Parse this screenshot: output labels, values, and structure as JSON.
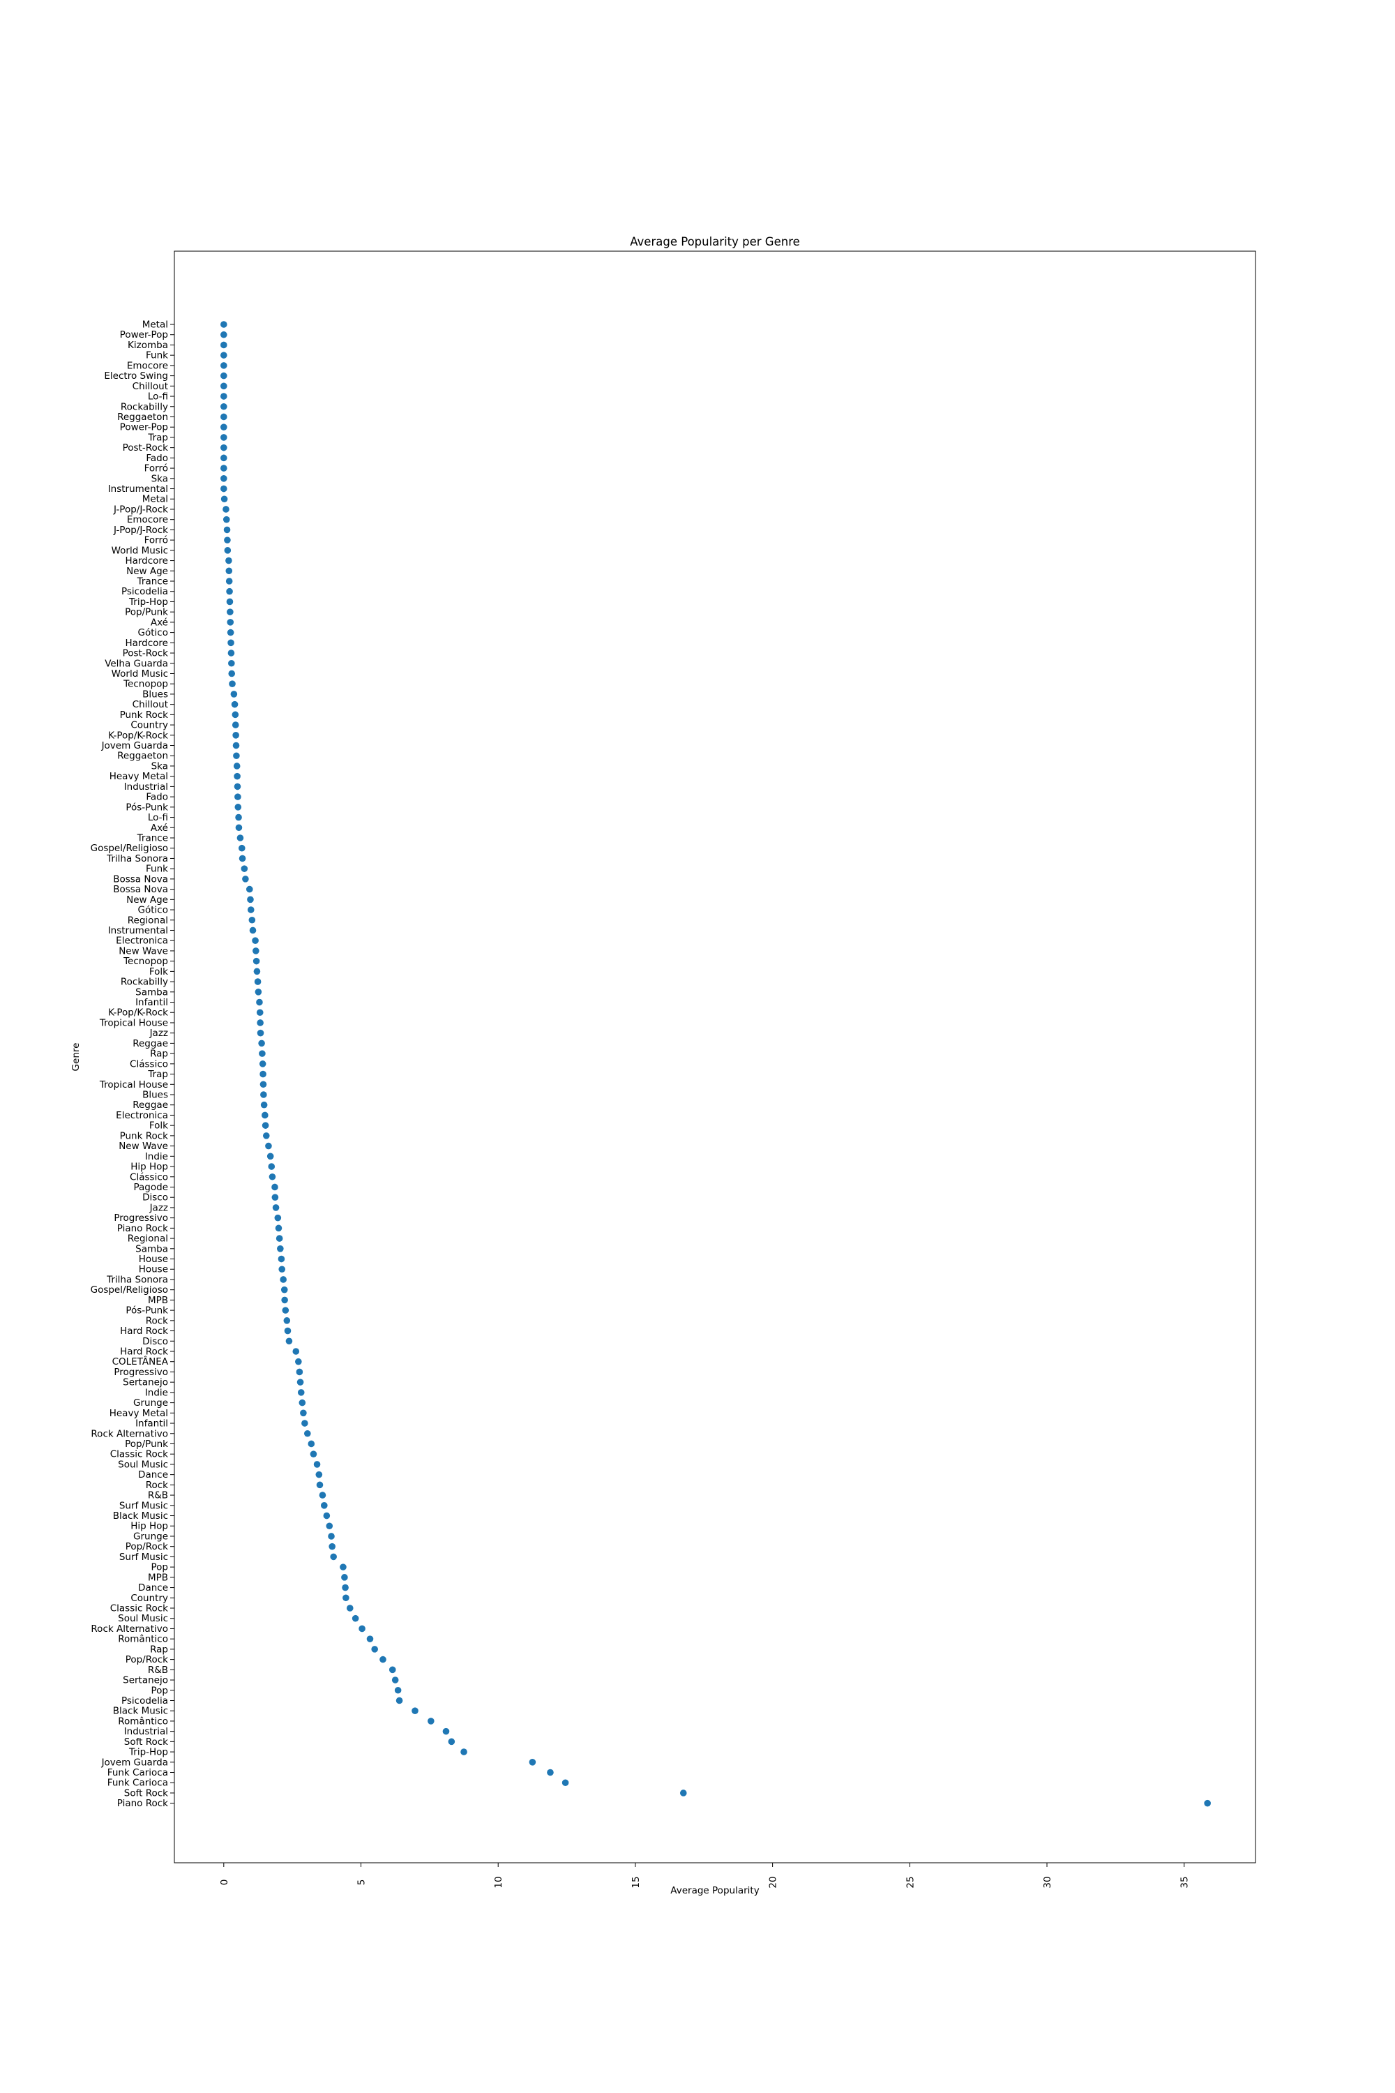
{
  "chart_data": {
    "type": "scatter",
    "title": "Average Popularity per Genre",
    "xlabel": "Average Popularity",
    "ylabel": "Genre",
    "xlim": [
      -1.8,
      37.6
    ],
    "xticks": [
      0,
      5,
      10,
      15,
      20,
      25,
      30,
      35
    ],
    "grid": false,
    "color": "#1f77b4",
    "categories": [
      "Metal",
      "Power-Pop",
      "Kizomba",
      "Funk",
      "Emocore",
      "Electro Swing",
      "Chillout",
      "Lo-fi",
      "Rockabilly",
      "Reggaeton",
      "Power-Pop",
      "Trap",
      "Post-Rock",
      "Fado",
      "Forró",
      "Ska",
      "Instrumental",
      "Metal",
      "J-Pop/J-Rock",
      "Emocore",
      "J-Pop/J-Rock",
      "Forró",
      "World Music",
      "Hardcore",
      "New Age",
      "Trance",
      "Psicodelia",
      "Trip-Hop",
      "Pop/Punk",
      "Axé",
      "Gótico",
      "Hardcore",
      "Post-Rock",
      "Velha Guarda",
      "World Music",
      "Tecnopop",
      "Blues",
      "Chillout",
      "Punk Rock",
      "Country",
      "K-Pop/K-Rock",
      "Jovem Guarda",
      "Reggaeton",
      "Ska",
      "Heavy Metal",
      "Industrial",
      "Fado",
      "Pós-Punk",
      "Lo-fi",
      "Axé",
      "Trance",
      "Gospel/Religioso",
      "Trilha Sonora",
      "Funk",
      "Bossa Nova",
      "Bossa Nova",
      "New Age",
      "Gótico",
      "Regional",
      "Instrumental",
      "Electronica",
      "New Wave",
      "Tecnopop",
      "Folk",
      "Rockabilly",
      "Samba",
      "Infantil",
      "K-Pop/K-Rock",
      "Tropical House",
      "Jazz",
      "Reggae",
      "Rap",
      "Clássico",
      "Trap",
      "Tropical House",
      "Blues",
      "Reggae",
      "Electronica",
      "Folk",
      "Punk Rock",
      "New Wave",
      "Indie",
      "Hip Hop",
      "Clássico",
      "Pagode",
      "Disco",
      "Jazz",
      "Progressivo",
      "Piano Rock",
      "Regional",
      "Samba",
      "House",
      "House",
      "Trilha Sonora",
      "Gospel/Religioso",
      "MPB",
      "Pós-Punk",
      "Rock",
      "Hard Rock",
      "Disco",
      "Hard Rock",
      "COLETÂNEA",
      "Progressivo",
      "Sertanejo",
      "Indie",
      "Grunge",
      "Heavy Metal",
      "Infantil",
      "Rock Alternativo",
      "Pop/Punk",
      "Classic Rock",
      "Soul Music",
      "Dance",
      "Rock",
      "R&B",
      "Surf Music",
      "Black Music",
      "Hip Hop",
      "Grunge",
      "Pop/Rock",
      "Surf Music",
      "Pop",
      "MPB",
      "Dance",
      "Country",
      "Classic Rock",
      "Soul Music",
      "Rock Alternativo",
      "Romântico",
      "Rap",
      "Pop/Rock",
      "R&B",
      "Sertanejo",
      "Pop",
      "Psicodelia",
      "Black Music",
      "Romântico",
      "Industrial",
      "Soft Rock",
      "Trip-Hop",
      "Jovem Guarda",
      "Funk Carioca",
      "Funk Carioca",
      "Soft Rock",
      "Piano Rock"
    ],
    "values": [
      0.0,
      0.0,
      0.0,
      0.0,
      0.0,
      0.0,
      0.0,
      0.0,
      0.0,
      0.0,
      0.0,
      0.0,
      0.0,
      0.0,
      0.0,
      0.0,
      0.0,
      0.02,
      0.08,
      0.1,
      0.12,
      0.13,
      0.14,
      0.18,
      0.19,
      0.2,
      0.21,
      0.22,
      0.23,
      0.24,
      0.25,
      0.26,
      0.27,
      0.28,
      0.29,
      0.31,
      0.37,
      0.4,
      0.42,
      0.43,
      0.44,
      0.45,
      0.46,
      0.48,
      0.49,
      0.5,
      0.51,
      0.52,
      0.54,
      0.55,
      0.6,
      0.66,
      0.68,
      0.75,
      0.79,
      0.94,
      0.97,
      0.99,
      1.03,
      1.06,
      1.15,
      1.17,
      1.19,
      1.21,
      1.24,
      1.26,
      1.3,
      1.32,
      1.33,
      1.34,
      1.38,
      1.4,
      1.42,
      1.43,
      1.44,
      1.45,
      1.47,
      1.5,
      1.52,
      1.55,
      1.63,
      1.7,
      1.74,
      1.77,
      1.86,
      1.87,
      1.9,
      1.97,
      2.0,
      2.03,
      2.06,
      2.1,
      2.12,
      2.17,
      2.21,
      2.22,
      2.25,
      2.3,
      2.33,
      2.38,
      2.63,
      2.72,
      2.76,
      2.79,
      2.82,
      2.86,
      2.9,
      2.95,
      3.05,
      3.19,
      3.27,
      3.4,
      3.47,
      3.5,
      3.6,
      3.66,
      3.75,
      3.85,
      3.92,
      3.95,
      4.0,
      4.35,
      4.4,
      4.43,
      4.45,
      4.6,
      4.8,
      5.04,
      5.33,
      5.5,
      5.8,
      6.15,
      6.25,
      6.35,
      6.4,
      6.97,
      7.55,
      8.1,
      8.3,
      8.75,
      11.25,
      11.9,
      12.45,
      16.75,
      35.85
    ]
  }
}
